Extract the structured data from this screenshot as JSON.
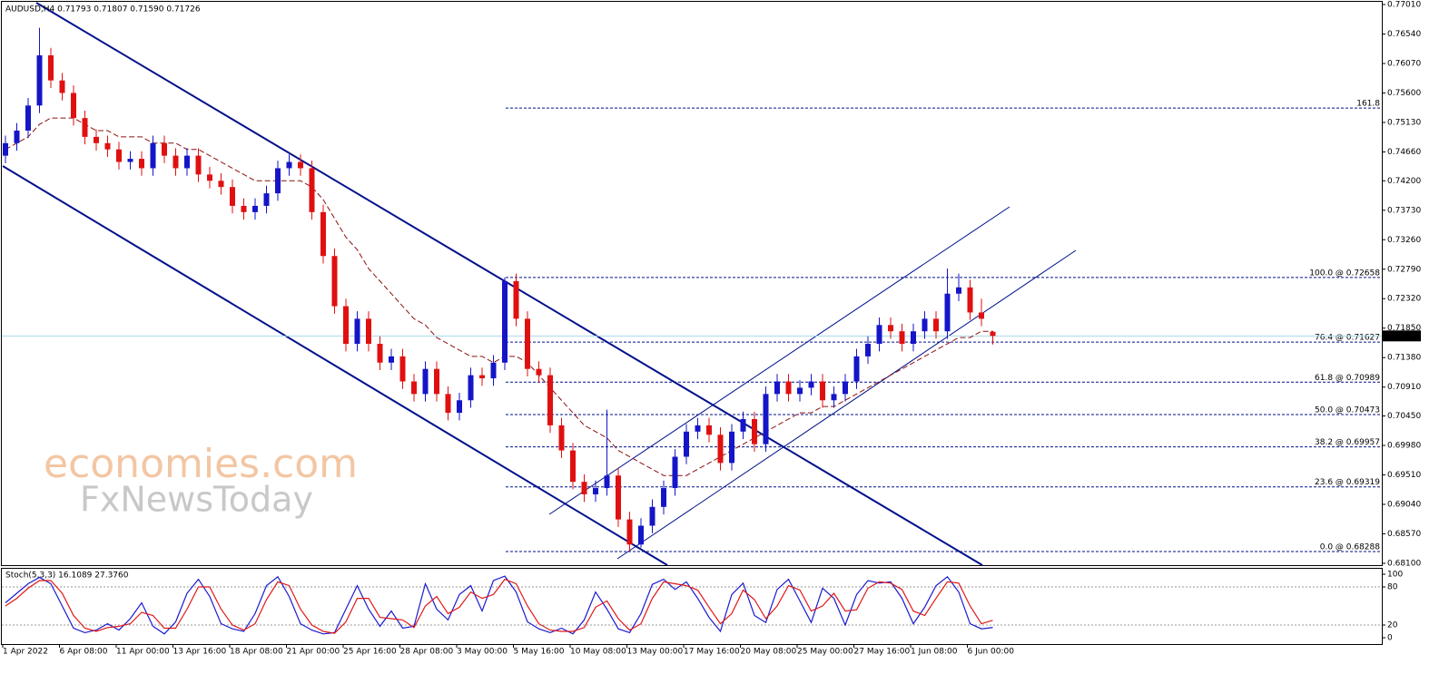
{
  "chart_data": {
    "type": "candlestick",
    "title": "AUDUSD,H4  0.71793 0.71807 0.71590 0.71726",
    "watermark": [
      "economies.com",
      "FxNewsToday"
    ],
    "up_color": "#1515c8",
    "down_color": "#e01010",
    "ma_color": "#8b1010",
    "categories": [
      "1 Apr 2022",
      null,
      null,
      null,
      null,
      "6 Apr 08:00",
      null,
      null,
      null,
      null,
      "11 Apr 00:00",
      null,
      null,
      null,
      null,
      "13 Apr 16:00",
      null,
      null,
      null,
      null,
      "18 Apr 08:00",
      null,
      null,
      null,
      null,
      "21 Apr 00:00",
      null,
      null,
      null,
      null,
      "25 Apr 16:00",
      null,
      null,
      null,
      null,
      "28 Apr 08:00",
      null,
      null,
      null,
      null,
      "3 May 00:00",
      null,
      null,
      null,
      null,
      "5 May 16:00",
      null,
      null,
      null,
      null,
      "10 May 08:00",
      null,
      null,
      null,
      null,
      "13 May 00:00",
      null,
      null,
      null,
      null,
      "17 May 16:00",
      null,
      null,
      null,
      null,
      "20 May 08:00",
      null,
      null,
      null,
      null,
      "25 May 00:00",
      null,
      null,
      null,
      null,
      "27 May 16:00",
      null,
      null,
      null,
      null,
      "1 Jun 08:00",
      null,
      null,
      null,
      null,
      "6 Jun 00:00",
      null,
      null
    ],
    "open": [
      0.746,
      0.748,
      0.75,
      0.754,
      0.762,
      0.758,
      0.756,
      0.752,
      0.749,
      0.748,
      0.747,
      0.745,
      0.7455,
      0.744,
      0.748,
      0.746,
      0.744,
      0.746,
      0.743,
      0.742,
      0.741,
      0.738,
      0.737,
      0.738,
      0.74,
      0.744,
      0.745,
      0.744,
      0.737,
      0.73,
      0.722,
      0.716,
      0.72,
      0.716,
      0.713,
      0.714,
      0.71,
      0.708,
      0.712,
      0.708,
      0.705,
      0.707,
      0.711,
      0.7105,
      0.713,
      0.726,
      0.72,
      0.712,
      0.711,
      0.703,
      0.699,
      0.694,
      0.692,
      0.693,
      0.695,
      0.688,
      0.684,
      0.687,
      0.69,
      0.693,
      0.698,
      0.702,
      0.703,
      0.7015,
      0.697,
      0.702,
      0.704,
      0.7,
      0.708,
      0.71,
      0.708,
      0.709,
      0.71,
      0.707,
      0.708,
      0.71,
      0.714,
      0.716,
      0.719,
      0.718,
      0.716,
      0.718,
      0.72,
      0.718,
      0.724,
      0.725,
      0.721,
      0.71793
    ],
    "high": [
      0.7492,
      0.7512,
      0.7552,
      0.7664,
      0.7632,
      0.7592,
      0.7572,
      0.7532,
      0.7502,
      0.7492,
      0.7482,
      0.7467,
      0.7467,
      0.7492,
      0.7492,
      0.7472,
      0.7472,
      0.7472,
      0.7442,
      0.7432,
      0.7422,
      0.7392,
      0.7392,
      0.7412,
      0.7452,
      0.7462,
      0.7462,
      0.7452,
      0.7382,
      0.7312,
      0.7232,
      0.7212,
      0.7212,
      0.7172,
      0.7152,
      0.7152,
      0.7112,
      0.7132,
      0.7132,
      0.7092,
      0.7082,
      0.7122,
      0.7122,
      0.7142,
      0.7266,
      0.7272,
      0.7212,
      0.7132,
      0.7122,
      0.7042,
      0.7002,
      0.6952,
      0.6942,
      0.7055,
      0.6962,
      0.6892,
      0.6882,
      0.6912,
      0.6942,
      0.6992,
      0.7032,
      0.7042,
      0.7042,
      0.7027,
      0.7032,
      0.7052,
      0.7052,
      0.7092,
      0.7112,
      0.7112,
      0.7102,
      0.7112,
      0.7112,
      0.7092,
      0.7112,
      0.7152,
      0.7172,
      0.7202,
      0.7202,
      0.7192,
      0.7192,
      0.7212,
      0.7212,
      0.728,
      0.7272,
      0.7262,
      0.7232,
      0.71807
    ],
    "low": [
      0.7448,
      0.7468,
      0.7488,
      0.7528,
      0.7568,
      0.7548,
      0.7508,
      0.7478,
      0.7468,
      0.7458,
      0.7438,
      0.7438,
      0.7428,
      0.7428,
      0.7448,
      0.7428,
      0.7428,
      0.7418,
      0.7408,
      0.7398,
      0.7368,
      0.7358,
      0.7358,
      0.7368,
      0.7388,
      0.7428,
      0.7428,
      0.7358,
      0.7288,
      0.7208,
      0.7148,
      0.7148,
      0.7148,
      0.7118,
      0.7118,
      0.7088,
      0.7068,
      0.7068,
      0.7068,
      0.7038,
      0.7038,
      0.7058,
      0.7093,
      0.7093,
      0.7118,
      0.7188,
      0.7108,
      0.7098,
      0.7018,
      0.6978,
      0.6928,
      0.6908,
      0.6908,
      0.6918,
      0.6868,
      0.6829,
      0.6835,
      0.6858,
      0.6888,
      0.6918,
      0.6968,
      0.7008,
      0.7003,
      0.6958,
      0.6958,
      0.7008,
      0.6988,
      0.6988,
      0.7068,
      0.7068,
      0.7068,
      0.7078,
      0.7058,
      0.7058,
      0.7068,
      0.7088,
      0.7128,
      0.7148,
      0.7168,
      0.7148,
      0.7148,
      0.7168,
      0.7168,
      0.7168,
      0.7228,
      0.7198,
      0.7188,
      0.7159
    ],
    "close": [
      0.748,
      0.75,
      0.754,
      0.762,
      0.758,
      0.756,
      0.752,
      0.749,
      0.748,
      0.747,
      0.745,
      0.7455,
      0.744,
      0.748,
      0.746,
      0.744,
      0.746,
      0.743,
      0.742,
      0.741,
      0.738,
      0.737,
      0.738,
      0.74,
      0.744,
      0.745,
      0.744,
      0.737,
      0.73,
      0.722,
      0.716,
      0.72,
      0.716,
      0.713,
      0.714,
      0.71,
      0.708,
      0.712,
      0.708,
      0.705,
      0.707,
      0.711,
      0.7105,
      0.713,
      0.726,
      0.72,
      0.712,
      0.711,
      0.703,
      0.699,
      0.694,
      0.692,
      0.693,
      0.695,
      0.688,
      0.684,
      0.687,
      0.69,
      0.693,
      0.698,
      0.702,
      0.703,
      0.7015,
      0.697,
      0.702,
      0.704,
      0.7,
      0.708,
      0.71,
      0.708,
      0.709,
      0.71,
      0.707,
      0.708,
      0.71,
      0.714,
      0.716,
      0.719,
      0.718,
      0.716,
      0.718,
      0.72,
      0.718,
      0.724,
      0.725,
      0.721,
      0.72,
      0.71726
    ],
    "ma": [
      0.747,
      0.748,
      0.749,
      0.751,
      0.752,
      0.752,
      0.752,
      0.751,
      0.75,
      0.75,
      0.749,
      0.749,
      0.749,
      0.748,
      0.748,
      0.748,
      0.747,
      0.747,
      0.746,
      0.745,
      0.744,
      0.743,
      0.742,
      0.742,
      0.742,
      0.742,
      0.742,
      0.741,
      0.739,
      0.736,
      0.733,
      0.731,
      0.728,
      0.726,
      0.724,
      0.722,
      0.72,
      0.719,
      0.717,
      0.716,
      0.715,
      0.714,
      0.714,
      0.713,
      0.714,
      0.714,
      0.713,
      0.711,
      0.709,
      0.707,
      0.705,
      0.703,
      0.702,
      0.701,
      0.699,
      0.698,
      0.697,
      0.696,
      0.695,
      0.695,
      0.695,
      0.696,
      0.697,
      0.698,
      0.699,
      0.7,
      0.701,
      0.702,
      0.703,
      0.704,
      0.705,
      0.705,
      0.706,
      0.706,
      0.707,
      0.708,
      0.709,
      0.71,
      0.711,
      0.712,
      0.713,
      0.714,
      0.715,
      0.716,
      0.717,
      0.717,
      0.718,
      0.718
    ],
    "ylim": [
      0.681,
      0.7701
    ],
    "yticks": [
      {
        "value": 0.7701,
        "label": "0.77010"
      },
      {
        "value": 0.7654,
        "label": "0.76540"
      },
      {
        "value": 0.7607,
        "label": "0.76070"
      },
      {
        "value": 0.756,
        "label": "0.75600"
      },
      {
        "value": 0.7513,
        "label": "0.75130"
      },
      {
        "value": 0.7466,
        "label": "0.74660"
      },
      {
        "value": 0.742,
        "label": "0.74200"
      },
      {
        "value": 0.7373,
        "label": "0.73730"
      },
      {
        "value": 0.7326,
        "label": "0.73260"
      },
      {
        "value": 0.7279,
        "label": "0.72790"
      },
      {
        "value": 0.7232,
        "label": "0.72320"
      },
      {
        "value": 0.7185,
        "label": "0.71850"
      },
      {
        "value": 0.7138,
        "label": "0.71380"
      },
      {
        "value": 0.7091,
        "label": "0.70910"
      },
      {
        "value": 0.7045,
        "label": "0.70450"
      },
      {
        "value": 0.6998,
        "label": "0.69980"
      },
      {
        "value": 0.6951,
        "label": "0.69510"
      },
      {
        "value": 0.6904,
        "label": "0.69040"
      },
      {
        "value": 0.6857,
        "label": "0.68570"
      },
      {
        "value": 0.681,
        "label": "0.68100"
      }
    ],
    "last_price": {
      "value": 0.71726,
      "label": "0.71726"
    },
    "fib_levels": [
      {
        "value": 0.7536,
        "label": "161.8"
      },
      {
        "value": 0.72658,
        "label": "100.0 @ 0.72658"
      },
      {
        "value": 0.71627,
        "label": "76.4 @ 0.71627"
      },
      {
        "value": 0.70989,
        "label": "61.8 @ 0.70989"
      },
      {
        "value": 0.70473,
        "label": "50.0 @ 0.70473"
      },
      {
        "value": 0.69957,
        "label": "38.2 @ 0.69957"
      },
      {
        "value": 0.69319,
        "label": "23.6 @ 0.69319"
      },
      {
        "value": 0.68288,
        "label": "0.0 @ 0.68288"
      }
    ],
    "stoch": {
      "title": "Stoch(5,3,3) 16.1089 27.3760",
      "ylim": [
        0,
        100
      ],
      "yticks": [
        100,
        80,
        20,
        0
      ],
      "levels": [
        80,
        20
      ],
      "series": [
        {
          "color": "#1a1ad0",
          "values": [
            55,
            70,
            85,
            95,
            85,
            50,
            15,
            8,
            12,
            22,
            12,
            30,
            55,
            18,
            6,
            25,
            70,
            92,
            65,
            22,
            14,
            10,
            38,
            82,
            96,
            65,
            22,
            12,
            6,
            8,
            45,
            82,
            45,
            18,
            42,
            15,
            18,
            85,
            45,
            28,
            68,
            82,
            42,
            90,
            97,
            72,
            25,
            14,
            8,
            15,
            6,
            28,
            72,
            45,
            14,
            8,
            38,
            84,
            92,
            76,
            88,
            62,
            32,
            10,
            68,
            86,
            35,
            24,
            76,
            92,
            58,
            24,
            78,
            62,
            20,
            68,
            90,
            86,
            88,
            62,
            22,
            48,
            82,
            96,
            72,
            22,
            14,
            16.1089
          ]
        },
        {
          "color": "#e01818",
          "values": [
            50,
            62,
            78,
            90,
            90,
            70,
            35,
            15,
            10,
            16,
            18,
            22,
            40,
            35,
            15,
            15,
            45,
            80,
            80,
            45,
            20,
            12,
            22,
            60,
            88,
            82,
            45,
            20,
            10,
            7,
            25,
            62,
            62,
            32,
            30,
            28,
            16,
            50,
            65,
            38,
            48,
            72,
            62,
            68,
            92,
            85,
            50,
            22,
            12,
            10,
            10,
            16,
            48,
            58,
            30,
            12,
            22,
            62,
            88,
            85,
            82,
            75,
            48,
            22,
            38,
            75,
            60,
            30,
            50,
            82,
            75,
            42,
            50,
            70,
            42,
            44,
            78,
            88,
            86,
            76,
            42,
            35,
            62,
            88,
            86,
            50,
            22,
            27.376
          ]
        }
      ]
    }
  }
}
